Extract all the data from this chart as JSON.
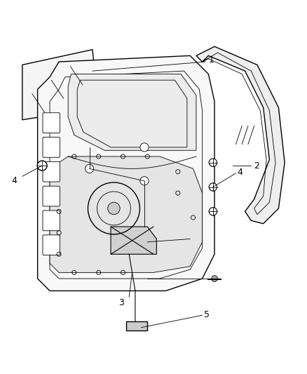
{
  "background_color": "#ffffff",
  "line_color": "#000000",
  "label_color": "#000000",
  "figsize": [
    4.38,
    5.33
  ],
  "dpi": 100
}
